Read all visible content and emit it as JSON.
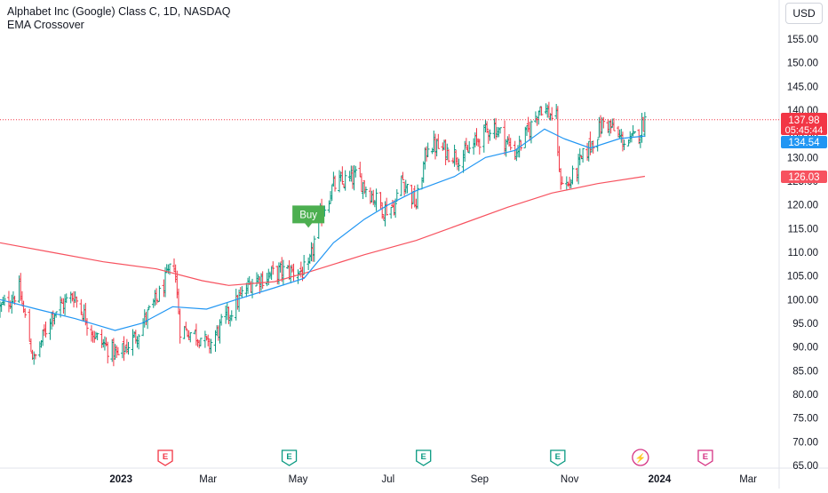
{
  "header": {
    "title": "Alphabet Inc (Google) Class C, 1D, NASDAQ",
    "indicator": "EMA Crossover",
    "currency": "USD"
  },
  "price_tags": {
    "last_price": "137.98",
    "countdown": "05:45:44",
    "ema_short": "134.54",
    "ema_long": "126.03"
  },
  "signal": {
    "label": "Buy",
    "color": "#4caf50"
  },
  "colors": {
    "up": "#089981",
    "down": "#f23645",
    "ema_short": "#2196f3",
    "ema_long": "#f7525f",
    "last_line": "#f23645"
  },
  "chart_data": {
    "type": "ohlc",
    "y_ticks": [
      65,
      70,
      75,
      80,
      85,
      90,
      95,
      100,
      105,
      110,
      115,
      120,
      125,
      130,
      135,
      140,
      145,
      150,
      155
    ],
    "y_tick_labels": [
      "65.00",
      "70.00",
      "75.00",
      "80.00",
      "85.00",
      "90.00",
      "95.00",
      "100.00",
      "105.00",
      "110.00",
      "115.00",
      "120.00",
      "125.00",
      "130.00",
      "135.00",
      "140.00",
      "145.00",
      "150.00",
      "155.00"
    ],
    "ylim": [
      64,
      161
    ],
    "x_ticks": [
      {
        "label": "2023",
        "date": "2023-01-01"
      },
      {
        "label": "Mar",
        "date": "2023-03-01"
      },
      {
        "label": "May",
        "date": "2023-05-01"
      },
      {
        "label": "Jul",
        "date": "2023-07-01"
      },
      {
        "label": "Sep",
        "date": "2023-09-01"
      },
      {
        "label": "Nov",
        "date": "2023-11-01"
      },
      {
        "label": "2024",
        "date": "2024-01-01"
      },
      {
        "label": "Mar",
        "date": "2024-03-01"
      }
    ],
    "xlim": [
      "2022-10-11",
      "2024-03-22"
    ],
    "price_path": [
      [
        "2022-10-11",
        98
      ],
      [
        "2022-10-24",
        102
      ],
      [
        "2022-11-03",
        87
      ],
      [
        "2022-11-15",
        97
      ],
      [
        "2022-11-30",
        101
      ],
      [
        "2022-12-15",
        92
      ],
      [
        "2022-12-30",
        88
      ],
      [
        "2023-01-10",
        92
      ],
      [
        "2023-01-27",
        101
      ],
      [
        "2023-02-06",
        108
      ],
      [
        "2023-02-10",
        94
      ],
      [
        "2023-02-25",
        92
      ],
      [
        "2023-03-01",
        90
      ],
      [
        "2023-03-15",
        97
      ],
      [
        "2023-03-31",
        104
      ],
      [
        "2023-04-20",
        106
      ],
      [
        "2023-05-08",
        106
      ],
      [
        "2023-05-15",
        117
      ],
      [
        "2023-05-25",
        124
      ],
      [
        "2023-06-10",
        126
      ],
      [
        "2023-06-28",
        119
      ],
      [
        "2023-07-06",
        120
      ],
      [
        "2023-07-10",
        126
      ],
      [
        "2023-07-20",
        120
      ],
      [
        "2023-07-28",
        133
      ],
      [
        "2023-08-20",
        130
      ],
      [
        "2023-09-10",
        137
      ],
      [
        "2023-09-25",
        131
      ],
      [
        "2023-10-05",
        136
      ],
      [
        "2023-10-12",
        141
      ],
      [
        "2023-10-23",
        138
      ],
      [
        "2023-10-25",
        126
      ],
      [
        "2023-10-31",
        124
      ],
      [
        "2023-11-10",
        130
      ],
      [
        "2023-11-25",
        138
      ],
      [
        "2023-12-05",
        134
      ],
      [
        "2023-12-12",
        133
      ],
      [
        "2023-12-19",
        136
      ],
      [
        "2023-12-22",
        138
      ]
    ],
    "ema_short": [
      [
        "2022-10-11",
        100
      ],
      [
        "2022-11-05",
        98
      ],
      [
        "2022-12-01",
        96
      ],
      [
        "2022-12-28",
        93.5
      ],
      [
        "2023-01-15",
        95
      ],
      [
        "2023-02-05",
        98.5
      ],
      [
        "2023-02-28",
        98
      ],
      [
        "2023-03-20",
        100
      ],
      [
        "2023-04-15",
        102.5
      ],
      [
        "2023-05-05",
        104.5
      ],
      [
        "2023-05-25",
        112
      ],
      [
        "2023-06-15",
        117
      ],
      [
        "2023-07-01",
        120
      ],
      [
        "2023-07-20",
        123
      ],
      [
        "2023-08-15",
        126
      ],
      [
        "2023-09-05",
        130
      ],
      [
        "2023-09-25",
        131.5
      ],
      [
        "2023-10-15",
        136
      ],
      [
        "2023-10-28",
        134
      ],
      [
        "2023-11-15",
        132
      ],
      [
        "2023-12-05",
        134
      ],
      [
        "2023-12-22",
        134.54
      ]
    ],
    "ema_long": [
      [
        "2022-10-11",
        112
      ],
      [
        "2022-11-15",
        110
      ],
      [
        "2022-12-20",
        108
      ],
      [
        "2023-01-25",
        106.5
      ],
      [
        "2023-02-25",
        104
      ],
      [
        "2023-03-15",
        103
      ],
      [
        "2023-04-15",
        103.8
      ],
      [
        "2023-05-10",
        106
      ],
      [
        "2023-06-15",
        109.5
      ],
      [
        "2023-07-20",
        112.5
      ],
      [
        "2023-08-20",
        116
      ],
      [
        "2023-09-20",
        119.5
      ],
      [
        "2023-10-20",
        122.5
      ],
      [
        "2023-11-20",
        124.5
      ],
      [
        "2023-12-22",
        126.03
      ]
    ],
    "last_price": 137.98,
    "signal_date": "2023-05-08",
    "signal_price": 115,
    "events": [
      {
        "date": "2023-01-31",
        "glyph": "E",
        "color": "#f23645"
      },
      {
        "date": "2023-04-25",
        "glyph": "E",
        "color": "#089981"
      },
      {
        "date": "2023-07-25",
        "glyph": "E",
        "color": "#089981"
      },
      {
        "date": "2023-10-24",
        "glyph": "E",
        "color": "#089981"
      },
      {
        "date": "2023-12-19",
        "glyph": "⚡",
        "color": "#d63384"
      },
      {
        "date": "2024-02-01",
        "glyph": "E",
        "color": "#d63384"
      }
    ]
  }
}
